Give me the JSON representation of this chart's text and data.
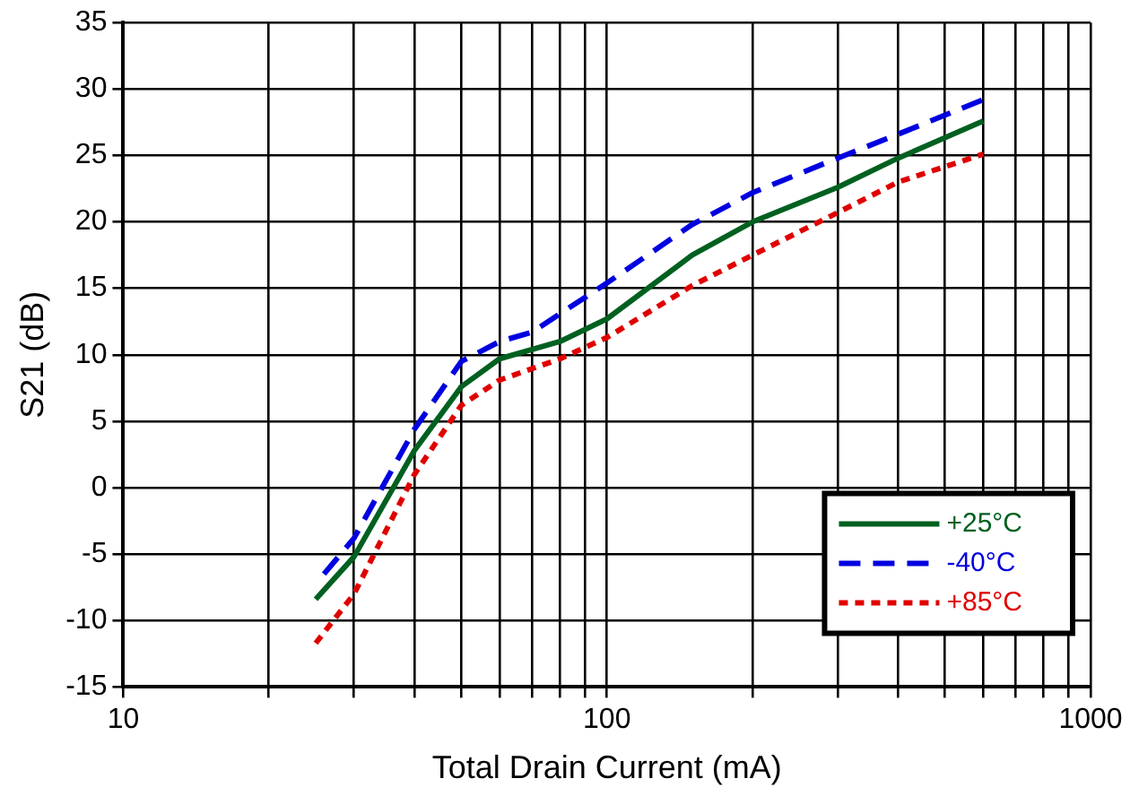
{
  "chart_data": {
    "type": "line",
    "xlabel": "Total Drain Current (mA)",
    "ylabel": "S21 (dB)",
    "log": "x",
    "grid": true,
    "legend": "bottom right",
    "marker": "none",
    "xlim": [
      10,
      1000
    ],
    "xticks": [
      10,
      {
        "value": 20,
        "label": null
      },
      {
        "value": 30,
        "label": null
      },
      {
        "value": 40,
        "label": null
      },
      {
        "value": 50,
        "label": null
      },
      {
        "value": 60,
        "label": null
      },
      {
        "value": 70,
        "label": null
      },
      {
        "value": 80,
        "label": null
      },
      {
        "value": 90,
        "label": null
      },
      100,
      {
        "value": 200,
        "label": null
      },
      {
        "value": 300,
        "label": null
      },
      {
        "value": 400,
        "label": null
      },
      {
        "value": 500,
        "label": null
      },
      {
        "value": 600,
        "label": null
      },
      {
        "value": 700,
        "label": null
      },
      {
        "value": 800,
        "label": null
      },
      {
        "value": 900,
        "label": null
      },
      1000
    ],
    "ylim": [
      -15,
      35
    ],
    "yticks": [
      -15,
      -10,
      -5,
      0,
      5,
      10,
      15,
      20,
      25,
      30,
      35
    ],
    "series": [
      {
        "name": "+25°C",
        "color": "#006020",
        "line_style": "solid",
        "x": [
          25,
          30,
          40,
          50,
          60,
          80,
          100,
          150,
          200,
          300,
          400,
          600
        ],
        "values": [
          -8.4,
          -5.2,
          2.8,
          7.6,
          9.7,
          11,
          12.7,
          17.5,
          20,
          22.6,
          24.8,
          27.6
        ]
      },
      {
        "name": "-40°C",
        "color": "#0000e0",
        "line_style": "dashed",
        "x": [
          26,
          30,
          40,
          50,
          60,
          70,
          100,
          150,
          200,
          300,
          400,
          600
        ],
        "values": [
          -6.5,
          -3.8,
          4.4,
          9.5,
          11,
          11.7,
          15.4,
          19.8,
          22.2,
          24.8,
          26.6,
          29.2
        ]
      },
      {
        "name": "+85°C",
        "color": "#e00000",
        "line_style": "dotted",
        "x": [
          25,
          30,
          40,
          50,
          60,
          80,
          100,
          150,
          200,
          300,
          400,
          600
        ],
        "values": [
          -11.7,
          -8,
          1,
          6.2,
          8.1,
          9.7,
          11.3,
          15.2,
          17.5,
          20.7,
          23,
          25.1
        ]
      }
    ]
  }
}
